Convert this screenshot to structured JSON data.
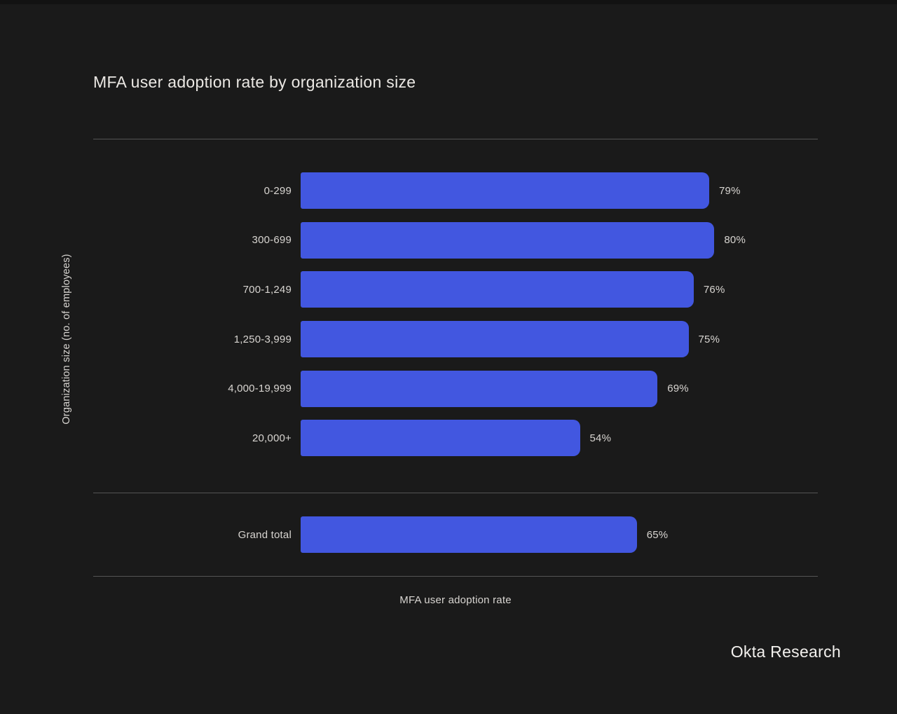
{
  "title": "MFA user adoption rate by organization size",
  "footer": "Okta Research",
  "colors": {
    "background": "#1a1a1a",
    "bar": "#4257e0",
    "divider": "#545454",
    "text": "#d8d5d1",
    "title_text": "#ebe8e4"
  },
  "chart_data": {
    "type": "bar",
    "orientation": "horizontal",
    "title": "MFA user adoption rate by organization size",
    "xlabel": "MFA user adoption rate",
    "ylabel": "Organization size (no. of employees)",
    "categories": [
      "0-299",
      "300-699",
      "700-1,249",
      "1,250-3,999",
      "4,000-19,999",
      "20,000+"
    ],
    "values": [
      79,
      80,
      76,
      75,
      69,
      54
    ],
    "grand_total": {
      "label": "Grand total",
      "value": 65
    },
    "value_suffix": "%",
    "xlim": [
      0,
      100
    ],
    "grid": false,
    "legend": false,
    "source": "Okta Research"
  }
}
